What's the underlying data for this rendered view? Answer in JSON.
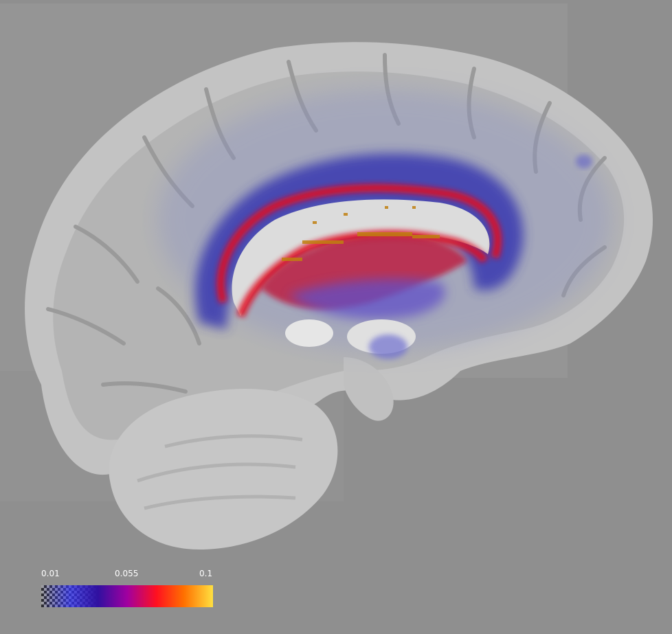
{
  "viewer": {
    "background_color": "#8f8f8f",
    "overlay_colormap": [
      "#ffffff",
      "#4040ff",
      "#3010a0",
      "#a000a0",
      "#ff1020",
      "#ff7000",
      "#ffe040"
    ]
  },
  "colorbar": {
    "min_label": "0.01",
    "mid_label": "0.055",
    "max_label": "0.1"
  }
}
